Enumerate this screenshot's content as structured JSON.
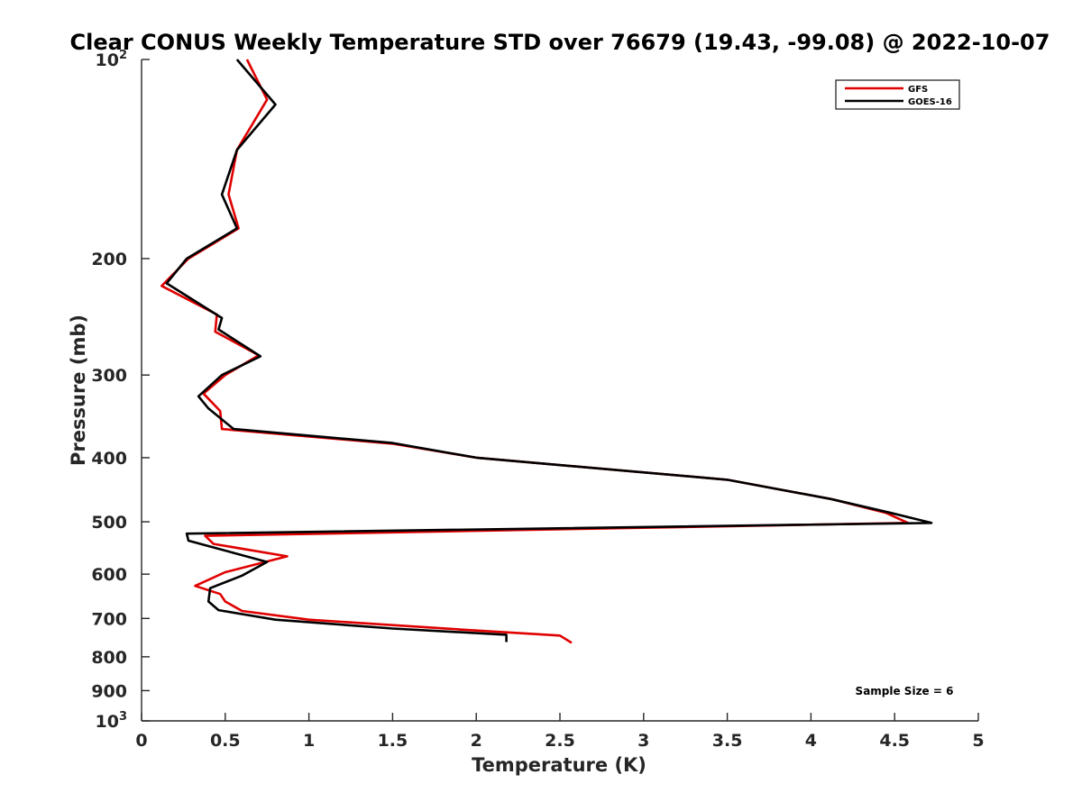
{
  "chart_data": {
    "type": "line",
    "title": "Clear CONUS Weekly Temperature STD over 76679 (19.43, -99.08) @ 2022-10-07",
    "xlabel": "Temperature (K)",
    "ylabel": "Pressure (mb)",
    "xlim": [
      0,
      5
    ],
    "ylim": [
      100,
      1000
    ],
    "y_scale": "log",
    "y_reversed": true,
    "grid": false,
    "legend_position": "top-right",
    "x_ticks": [
      "0",
      "0.5",
      "1",
      "1.5",
      "2",
      "2.5",
      "3",
      "3.5",
      "4",
      "4.5",
      "5"
    ],
    "y_ticks": [
      {
        "value": 100,
        "base": "10",
        "exp": "2"
      },
      {
        "value": 200,
        "label": "200"
      },
      {
        "value": 300,
        "label": "300"
      },
      {
        "value": 400,
        "label": "400"
      },
      {
        "value": 500,
        "label": "500"
      },
      {
        "value": 600,
        "label": "600"
      },
      {
        "value": 700,
        "label": "700"
      },
      {
        "value": 800,
        "label": "800"
      },
      {
        "value": 900,
        "label": "900"
      },
      {
        "value": 1000,
        "base": "10",
        "exp": "3"
      }
    ],
    "annotation": "Sample Size = 6",
    "series": [
      {
        "name": "GFS",
        "color": "#e00000",
        "points": [
          [
            0.63,
            100
          ],
          [
            0.75,
            115
          ],
          [
            0.57,
            137
          ],
          [
            0.52,
            160
          ],
          [
            0.58,
            180
          ],
          [
            0.28,
            200
          ],
          [
            0.12,
            220
          ],
          [
            0.45,
            243
          ],
          [
            0.44,
            258
          ],
          [
            0.7,
            280
          ],
          [
            0.5,
            300
          ],
          [
            0.37,
            320
          ],
          [
            0.47,
            340
          ],
          [
            0.48,
            362
          ],
          [
            1.5,
            381
          ],
          [
            2.0,
            400
          ],
          [
            3.5,
            432
          ],
          [
            4.12,
            462
          ],
          [
            4.45,
            485
          ],
          [
            4.58,
            502
          ],
          [
            0.38,
            525
          ],
          [
            0.43,
            540
          ],
          [
            0.87,
            564
          ],
          [
            0.5,
            596
          ],
          [
            0.32,
            625
          ],
          [
            0.47,
            643
          ],
          [
            0.5,
            660
          ],
          [
            0.6,
            682
          ],
          [
            1.0,
            703
          ],
          [
            2.0,
            730
          ],
          [
            2.5,
            743
          ],
          [
            2.57,
            762
          ]
        ]
      },
      {
        "name": "GOES-16",
        "color": "#000000",
        "points": [
          [
            0.57,
            100
          ],
          [
            0.8,
            117
          ],
          [
            0.57,
            137
          ],
          [
            0.48,
            160
          ],
          [
            0.57,
            180
          ],
          [
            0.27,
            200
          ],
          [
            0.15,
            218
          ],
          [
            0.48,
            246
          ],
          [
            0.46,
            256
          ],
          [
            0.71,
            281
          ],
          [
            0.48,
            300
          ],
          [
            0.34,
            323
          ],
          [
            0.4,
            337
          ],
          [
            0.55,
            362
          ],
          [
            1.5,
            380
          ],
          [
            2.0,
            400
          ],
          [
            3.5,
            432
          ],
          [
            4.12,
            462
          ],
          [
            4.48,
            485
          ],
          [
            4.72,
            502
          ],
          [
            0.27,
            521
          ],
          [
            0.28,
            534
          ],
          [
            0.75,
            575
          ],
          [
            0.6,
            603
          ],
          [
            0.41,
            630
          ],
          [
            0.4,
            660
          ],
          [
            0.46,
            680
          ],
          [
            0.8,
            703
          ],
          [
            1.5,
            725
          ],
          [
            2.18,
            741
          ],
          [
            2.18,
            760
          ]
        ]
      }
    ]
  }
}
